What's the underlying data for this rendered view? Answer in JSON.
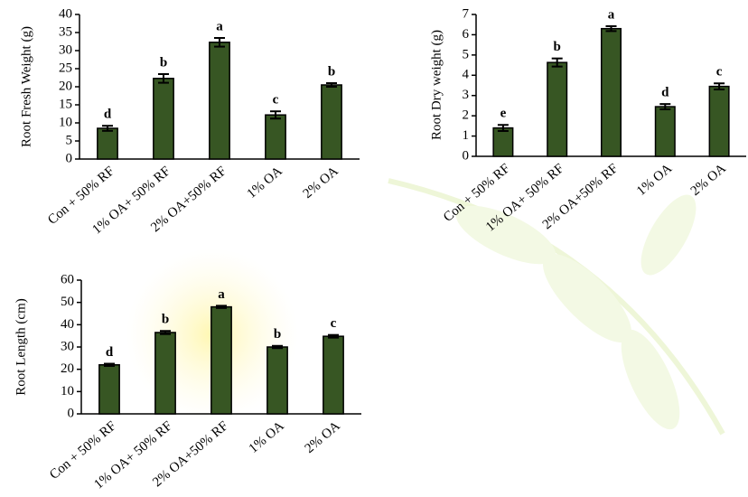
{
  "chart_data": [
    {
      "type": "bar",
      "ylabel": "Root Fresh Weight (g)",
      "categories": [
        "Con + 50% RF",
        "1% OA+ 50% RF",
        "2% OA+50% RF",
        "1% OA",
        "2% OA"
      ],
      "values": [
        8.5,
        22.3,
        32.3,
        12.2,
        20.5
      ],
      "errors": [
        0.7,
        1.2,
        1.2,
        1.0,
        0.5
      ],
      "letters": [
        "d",
        "b",
        "a",
        "c",
        "b"
      ],
      "color": "#375623",
      "ylim": [
        0,
        40
      ],
      "yticks": [
        0,
        5,
        10,
        15,
        20,
        25,
        30,
        35,
        40
      ]
    },
    {
      "type": "bar",
      "ylabel": "Root Dry weight (g)",
      "categories": [
        "Con + 50% RF",
        "1% OA+ 50% RF",
        "2% OA+50% RF",
        "1% OA",
        "2% OA"
      ],
      "values": [
        1.4,
        4.63,
        6.3,
        2.45,
        3.45
      ],
      "errors": [
        0.15,
        0.2,
        0.12,
        0.13,
        0.15
      ],
      "letters": [
        "e",
        "b",
        "a",
        "d",
        "c"
      ],
      "color": "#375623",
      "ylim": [
        0,
        7
      ],
      "yticks": [
        0,
        1,
        2,
        3,
        4,
        5,
        6,
        7
      ]
    },
    {
      "type": "bar",
      "ylabel": "Root Length (cm)",
      "categories": [
        "Con + 50% RF",
        "1% OA+ 50% RF",
        "2% OA+50% RF",
        "1% OA",
        "2% OA"
      ],
      "values": [
        22,
        36.5,
        48,
        30,
        34.8
      ],
      "errors": [
        0.5,
        0.7,
        0.5,
        0.5,
        0.6
      ],
      "letters": [
        "d",
        "b",
        "a",
        "b",
        "c"
      ],
      "color": "#375623",
      "ylim": [
        0,
        60
      ],
      "yticks": [
        0,
        10,
        20,
        30,
        40,
        50,
        60
      ]
    }
  ]
}
